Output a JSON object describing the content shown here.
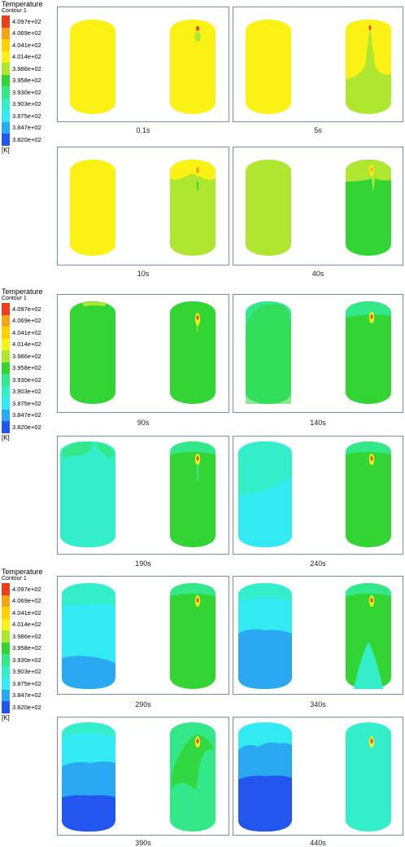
{
  "colors": {
    "c0": "#e8401c",
    "c1": "#f5a51a",
    "c2": "#fdd200",
    "c3": "#fbf215",
    "c4": "#aee630",
    "c5": "#33d535",
    "c6": "#33e889",
    "c7": "#33eec8",
    "c8": "#33e9f2",
    "c9": "#2aa9f2",
    "c10": "#2256ee"
  },
  "legends": [
    {
      "title": "Temperature",
      "subtitle": "Contour 1",
      "values": [
        "4.097e+02",
        "4.069e+02",
        "4.041e+02",
        "4.014e+02",
        "3.986e+02",
        "3.958e+02",
        "3.930e+02",
        "3.903e+02",
        "3.875e+02",
        "3.847e+02",
        "3.820e+02"
      ],
      "unit": "[K]"
    },
    {
      "title": "Temperature",
      "subtitle": "Contour 1",
      "values": [
        "4.097e+02",
        "4.069e+02",
        "4.041e+02",
        "4.014e+02",
        "3.986e+02",
        "3.958e+02",
        "3.930e+02",
        "3.903e+02",
        "3.875e+02",
        "3.847e+02",
        "3.820e+02"
      ],
      "unit": "[K]"
    },
    {
      "title": "Temperature",
      "subtitle": "Contour 1",
      "values": [
        "4.097e+02",
        "4.069e+02",
        "4.041e+02",
        "4.014e+02",
        "3.986e+02",
        "3.958e+02",
        "3.930e+02",
        "3.903e+02",
        "3.875e+02",
        "3.847e+02",
        "3.820e+02"
      ],
      "unit": "[K]"
    }
  ],
  "panels": [
    {
      "caption": "0.1s"
    },
    {
      "caption": "5s"
    },
    {
      "caption": "10s"
    },
    {
      "caption": "40s"
    },
    {
      "caption": "90s"
    },
    {
      "caption": "140s"
    },
    {
      "caption": "190s"
    },
    {
      "caption": "240s"
    },
    {
      "caption": "290s"
    },
    {
      "caption": "340s"
    },
    {
      "caption": "390s"
    },
    {
      "caption": "440s"
    }
  ]
}
